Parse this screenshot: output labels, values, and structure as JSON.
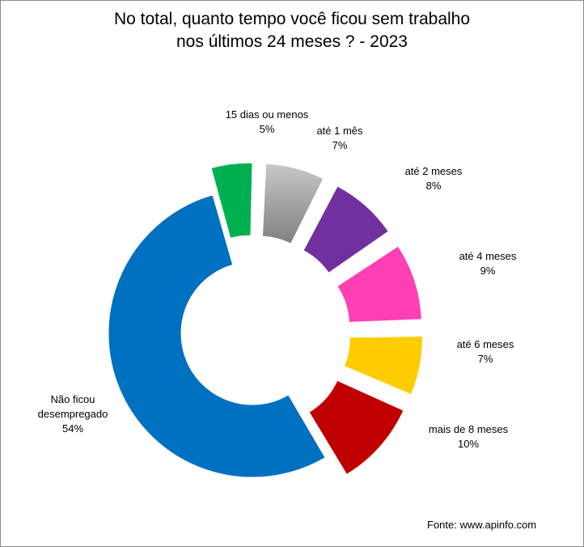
{
  "title_line1": "No total, quanto tempo você ficou sem trabalho",
  "title_line2": "nos últimos 24 meses ? - 2023",
  "source": "Fonte: www.apinfo.com",
  "chart_data": {
    "type": "pie",
    "variant": "exploded-donut",
    "title": "No total, quanto tempo você ficou sem trabalho nos últimos 24 meses ? - 2023",
    "slices": [
      {
        "label": "15 dias ou menos",
        "value": 5,
        "value_label": "5%",
        "color": "#00b050"
      },
      {
        "label": "até 1 mês",
        "value": 7,
        "value_label": "7%",
        "color": "#a6a6a6"
      },
      {
        "label": "até 2 meses",
        "value": 8,
        "value_label": "8%",
        "color": "#7030a0"
      },
      {
        "label": "até 4 meses",
        "value": 9,
        "value_label": "9%",
        "color": "#ff3fb4"
      },
      {
        "label": "até 6 meses",
        "value": 7,
        "value_label": "7%",
        "color": "#ffcc00"
      },
      {
        "label": "mais de 8 meses",
        "value": 10,
        "value_label": "10%",
        "color": "#c00000"
      },
      {
        "label": "Não ficou desempregado",
        "value": 54,
        "value_label": "54%",
        "color": "#0070c0"
      }
    ]
  }
}
